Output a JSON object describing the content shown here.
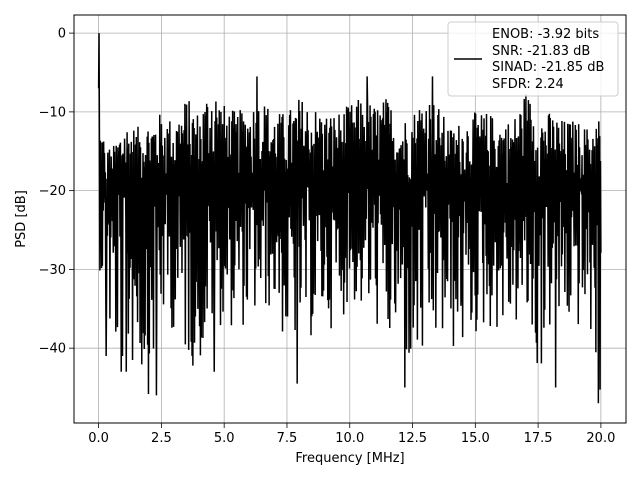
{
  "chart_data": {
    "type": "line",
    "title": "",
    "xlabel": "Frequency [MHz]",
    "ylabel": "PSD [dB]",
    "xlim": [
      -0.98,
      21.0
    ],
    "ylim": [
      -49.5,
      2.3
    ],
    "xticks": [
      0.0,
      2.5,
      5.0,
      7.5,
      10.0,
      12.5,
      15.0,
      17.5,
      20.0
    ],
    "xtick_labels": [
      "0.0",
      "2.5",
      "5.0",
      "7.5",
      "10.0",
      "12.5",
      "15.0",
      "17.5",
      "20.0"
    ],
    "yticks": [
      0,
      -10,
      -20,
      -30,
      -40
    ],
    "ytick_labels": [
      "0",
      "−10",
      "−20",
      "−30",
      "−40"
    ],
    "grid": true,
    "legend_position": "top-right",
    "series": [
      {
        "name": "ENOB: -3.92 bits\nSNR: -21.83 dB\nSINAD: -21.85 dB\nSFDR: 2.24",
        "legend_lines": [
          "ENOB: -3.92 bits",
          "SNR: -21.83 dB",
          "SINAD: -21.85 dB",
          "SFDR: 2.24"
        ],
        "color": "#000000",
        "x_start": 0.0,
        "x_end": 20.0,
        "points": 1200,
        "upper_envelope": [
          -11,
          -15,
          -11,
          -12,
          -11,
          -10,
          -11,
          -8,
          -10,
          -5.5,
          -9,
          -10,
          -9,
          -8,
          -10,
          -10,
          -8,
          -9,
          -10,
          -10,
          -9,
          -8,
          -9,
          -8,
          -11,
          -10,
          -7,
          -9,
          -12,
          -11,
          -10,
          -10,
          -11,
          -11,
          -7,
          -10,
          -10,
          -11,
          -11,
          -12,
          -10
        ],
        "lower_envelope": [
          -29,
          -41,
          -43,
          -43,
          -46,
          -37,
          -38,
          -42,
          -43,
          -38,
          -37,
          -38,
          -37,
          -36,
          -35,
          -41,
          -39,
          -39,
          -37,
          -38,
          -34,
          -36,
          -37,
          -41,
          -39,
          -45,
          -43,
          -40,
          -41,
          -41,
          -39,
          -38,
          -38,
          -38,
          -37,
          -45,
          -38,
          -38,
          -38,
          -38,
          -47
        ],
        "mean_level": -19.5,
        "peaks": [
          {
            "x": 0.02,
            "y": 0.0
          },
          {
            "x": 4.6,
            "y": -5.5
          },
          {
            "x": 6.3,
            "y": -5.5
          },
          {
            "x": 10.7,
            "y": -5.5
          },
          {
            "x": 12.2,
            "y": -6.5
          },
          {
            "x": 13.3,
            "y": -5.5
          }
        ],
        "troughs": [
          {
            "x": 0.3,
            "y": -41.0
          },
          {
            "x": 0.9,
            "y": -43.0
          },
          {
            "x": 1.1,
            "y": -43.0
          },
          {
            "x": 2.3,
            "y": -46.0
          },
          {
            "x": 4.6,
            "y": -43.0
          },
          {
            "x": 7.9,
            "y": -44.5
          },
          {
            "x": 12.2,
            "y": -45.0
          },
          {
            "x": 18.2,
            "y": -45.0
          },
          {
            "x": 19.9,
            "y": -47.0
          }
        ]
      }
    ]
  }
}
